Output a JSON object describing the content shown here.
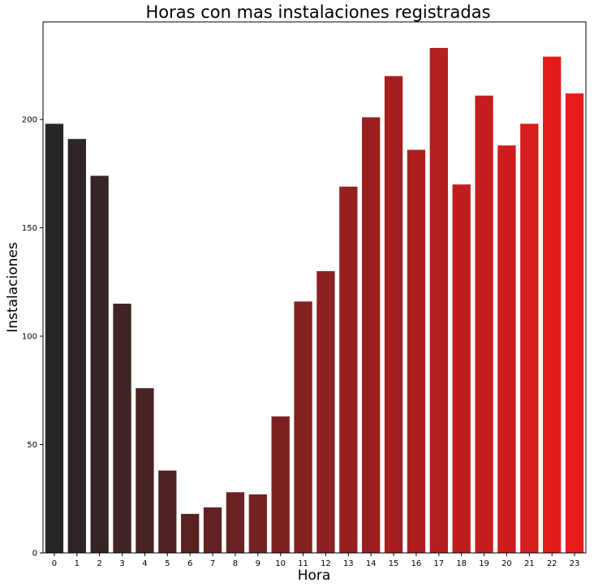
{
  "chart_data": {
    "type": "bar",
    "title": "Horas con mas instalaciones registradas",
    "xlabel": "Hora",
    "ylabel": "Instalaciones",
    "categories": [
      "0",
      "1",
      "2",
      "3",
      "4",
      "5",
      "6",
      "7",
      "8",
      "9",
      "10",
      "11",
      "12",
      "13",
      "14",
      "15",
      "16",
      "17",
      "18",
      "19",
      "20",
      "21",
      "22",
      "23"
    ],
    "values": [
      198,
      191,
      174,
      115,
      76,
      38,
      18,
      21,
      28,
      27,
      63,
      116,
      130,
      169,
      201,
      220,
      186,
      233,
      170,
      211,
      188,
      198,
      229,
      212
    ],
    "ylim": [
      0,
      245
    ],
    "yticks": [
      0,
      50,
      100,
      150,
      200
    ],
    "grid": false,
    "colors": {
      "start": "#262626",
      "end": "#e81c1c"
    }
  }
}
